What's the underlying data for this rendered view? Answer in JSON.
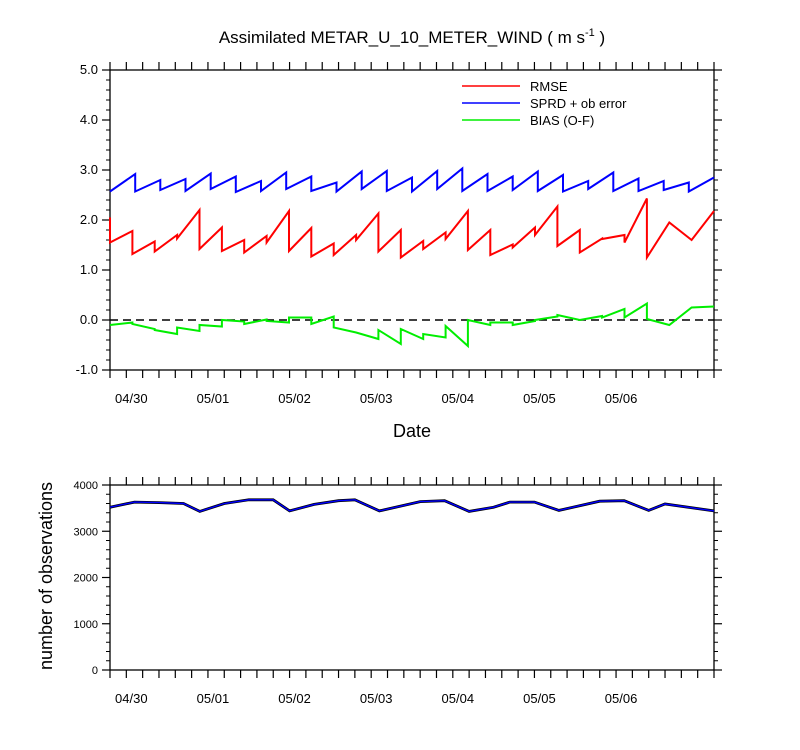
{
  "chart_data": [
    {
      "type": "line",
      "title": "Assimilated METAR_U_10_METER_WIND ( m s-1 )",
      "title_main": "Assimilated METAR_U_10_METER_WIND ( m s",
      "title_sup": "-1",
      "title_end": " )",
      "xlabel": "Date",
      "ylabel": "",
      "xlim": [
        0,
        37
      ],
      "ylim": [
        -1.0,
        5.0
      ],
      "yticks": [
        -1.0,
        0.0,
        1.0,
        2.0,
        3.0,
        4.0,
        5.0
      ],
      "ytick_labels": [
        "-1.0",
        "0.0",
        "1.0",
        "2.0",
        "3.0",
        "4.0",
        "5.0"
      ],
      "xticks": [
        1,
        6,
        11,
        16,
        21,
        26,
        31
      ],
      "xtick_labels": [
        "04/30",
        "05/01",
        "05/02",
        "05/03",
        "05/04",
        "05/05",
        "05/06"
      ],
      "zero_line": "dashed",
      "legend_position": "top-right",
      "series": [
        {
          "name": "RMSE",
          "color": "#ff0000",
          "style": "sawtooth",
          "x": [
            0,
            1,
            2,
            3,
            4,
            5,
            6,
            7,
            8,
            9,
            10,
            11,
            12,
            13,
            14,
            15,
            16,
            17,
            18,
            19,
            20,
            21,
            22,
            23,
            24,
            25,
            26,
            27,
            28,
            29,
            30,
            31,
            32,
            33,
            34,
            35,
            36,
            37
          ],
          "forecast": [
            2.05,
            1.78,
            1.57,
            1.7,
            2.2,
            1.85,
            1.6,
            1.68,
            2.18,
            1.84,
            1.53,
            1.7,
            2.13,
            1.8,
            1.58,
            1.75,
            2.18,
            1.8,
            1.51,
            1.85,
            2.27,
            1.8,
            1.63,
            1.7,
            2.43,
            1.95,
            1.6,
            2.18
          ],
          "analysis": [
            1.55,
            1.32,
            1.37,
            1.63,
            1.42,
            1.38,
            1.35,
            1.55,
            1.38,
            1.27,
            1.3,
            1.6,
            1.37,
            1.25,
            1.42,
            1.62,
            1.4,
            1.3,
            1.45,
            1.7,
            1.48,
            1.35,
            1.62,
            1.55,
            1.25
          ]
        },
        {
          "name": "SPRD + ob error",
          "color": "#0000ff",
          "style": "sawtooth",
          "forecast_values": [
            2.92,
            2.8,
            2.82,
            2.93,
            2.87,
            2.78,
            2.95,
            2.87,
            2.75,
            2.97,
            2.98,
            2.85,
            2.98,
            3.03,
            2.92,
            2.87,
            2.97,
            2.9,
            2.78,
            2.95,
            2.83,
            2.78,
            2.75,
            2.85
          ],
          "analysis_values": [
            2.57,
            2.57,
            2.6,
            2.58,
            2.62,
            2.56,
            2.58,
            2.62,
            2.58,
            2.57,
            2.62,
            2.58,
            2.57,
            2.62,
            2.58,
            2.58,
            2.6,
            2.58,
            2.57,
            2.62,
            2.58,
            2.58,
            2.6,
            2.57
          ]
        },
        {
          "name": "BIAS (O-F)",
          "color": "#00ee00",
          "style": "sawtooth",
          "forecast_values": [
            -0.1,
            -0.05,
            -0.18,
            -0.28,
            -0.22,
            -0.13,
            -0.03,
            0.01,
            -0.05,
            0.05,
            0.07,
            -0.25,
            -0.38,
            -0.48,
            -0.38,
            -0.35,
            -0.52,
            -0.1,
            -0.05,
            -0.02,
            0.07,
            0.0,
            0.08,
            0.22,
            0.33,
            -0.1,
            0.25,
            0.27
          ],
          "analysis_values": [
            -0.05,
            -0.08,
            -0.2,
            -0.15,
            -0.1,
            0.0,
            -0.08,
            -0.02,
            0.05,
            -0.08,
            -0.15,
            -0.25,
            -0.2,
            -0.18,
            -0.28,
            -0.12,
            0.0,
            -0.05,
            -0.1,
            0.0,
            0.1,
            0.0,
            0.05,
            0.05,
            0.02
          ]
        }
      ],
      "legend": [
        {
          "name": "RMSE",
          "color": "#ff0000"
        },
        {
          "name": "SPRD + ob error",
          "color": "#0000ff"
        },
        {
          "name": "BIAS (O-F)",
          "color": "#00ee00"
        }
      ]
    },
    {
      "type": "line",
      "title": "",
      "xlabel": "",
      "ylabel": "number of observations",
      "xlim": [
        0,
        37
      ],
      "ylim": [
        0,
        4000
      ],
      "yticks": [
        0,
        1000,
        2000,
        3000,
        4000
      ],
      "ytick_labels": [
        "0",
        "1000",
        "2000",
        "3000",
        "4000"
      ],
      "xticks": [
        1,
        6,
        11,
        16,
        21,
        26,
        31
      ],
      "xtick_labels": [
        "04/30",
        "05/01",
        "05/02",
        "05/03",
        "05/04",
        "05/05",
        "05/06"
      ],
      "series": [
        {
          "name": "",
          "color": "#0000ff",
          "x": [
            0,
            1.5,
            3,
            4.5,
            5.5,
            7,
            8.5,
            10,
            11,
            12.5,
            14,
            15,
            16.5,
            18,
            19,
            20.5,
            22,
            23.5,
            24.5,
            26,
            27.5,
            28.5,
            30,
            31.5,
            33,
            34,
            37
          ],
          "values": [
            3520,
            3630,
            3620,
            3600,
            3430,
            3600,
            3680,
            3680,
            3440,
            3580,
            3660,
            3680,
            3440,
            3560,
            3640,
            3660,
            3430,
            3520,
            3630,
            3630,
            3450,
            3530,
            3650,
            3660,
            3450,
            3590,
            3440
          ]
        }
      ]
    }
  ]
}
